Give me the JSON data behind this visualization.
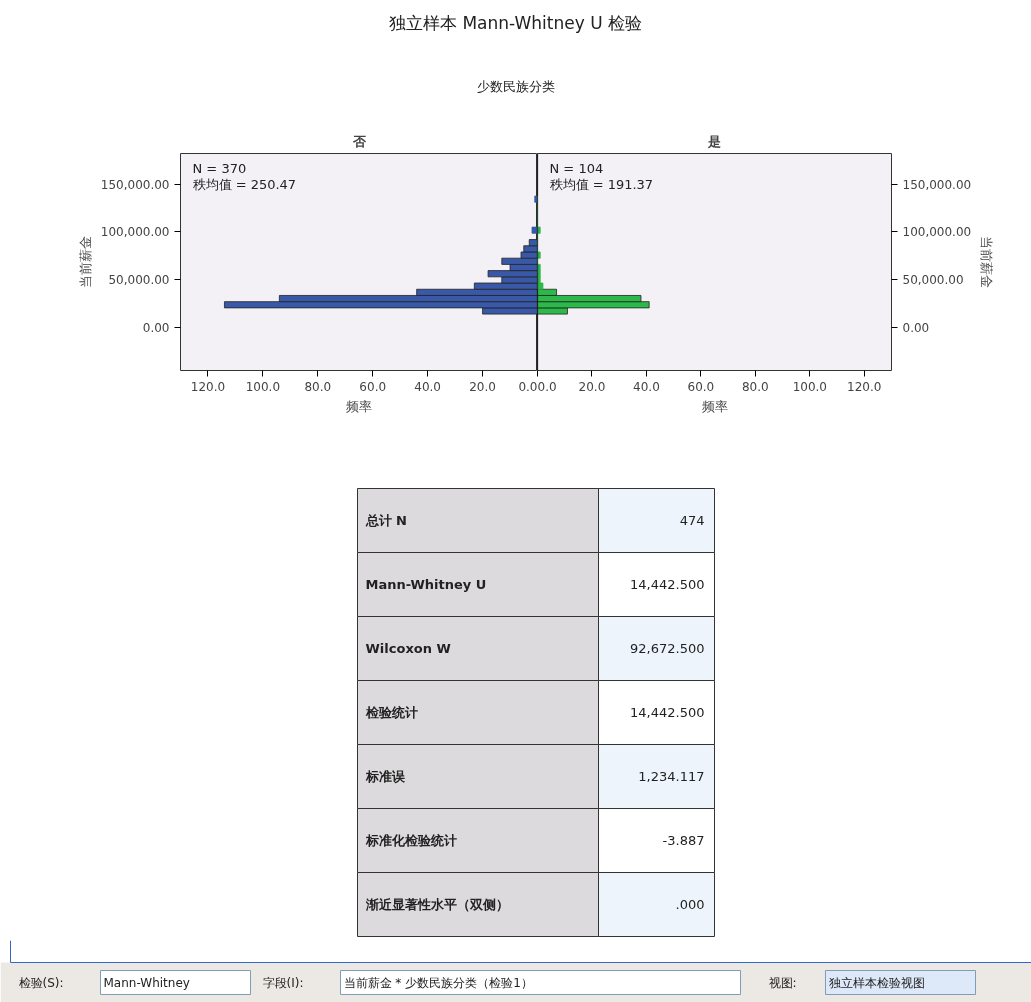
{
  "chart_data": [
    {
      "type": "other",
      "title": "独立样本 Mann-Whitney U 检验",
      "subtitle": "少数民族分类"
    },
    {
      "type": "histogram",
      "orientation": "horizontal",
      "title": "否",
      "xlabel": "频率",
      "ylabel": "当前薪金",
      "bins": [
        14000,
        20500,
        27000,
        33500,
        40000,
        46500,
        53000,
        59500,
        66000,
        72500,
        79000,
        85500,
        92000,
        98500,
        105000,
        111500,
        118000,
        124500,
        131000,
        137500
      ],
      "values": [
        20,
        114,
        94,
        44,
        23,
        13,
        18,
        10,
        13,
        6,
        5,
        3,
        0,
        2,
        0,
        0,
        0,
        0,
        1
      ],
      "color": "#3a58a8",
      "xlim": [
        130,
        0
      ],
      "xticks": [
        {
          "value": 120,
          "label": "120.0"
        },
        {
          "value": 100,
          "label": "100.0"
        },
        {
          "value": 80,
          "label": "80.0"
        },
        {
          "value": 60,
          "label": "60.0"
        },
        {
          "value": 40,
          "label": "40.0"
        },
        {
          "value": 20,
          "label": "20.0"
        },
        {
          "value": 0,
          "label": "0.0"
        }
      ],
      "ylim": [
        -45000,
        182000
      ],
      "yticks": [
        {
          "value": 0,
          "label": "0.00"
        },
        {
          "value": 50000,
          "label": "50,000.00"
        },
        {
          "value": 100000,
          "label": "100,000.00"
        },
        {
          "value": 150000,
          "label": "150,000.00"
        }
      ],
      "annotations": [
        "N = 370",
        "秩均值 = 250.47"
      ]
    },
    {
      "type": "histogram",
      "orientation": "horizontal",
      "title": "是",
      "xlabel": "频率",
      "ylabel": "当前薪金",
      "bins": [
        14000,
        20500,
        27000,
        33500,
        40000,
        46500,
        53000,
        59500,
        66000,
        72500,
        79000,
        85500,
        92000,
        98500,
        105000,
        111500,
        118000,
        124500,
        131000,
        137500
      ],
      "values": [
        11,
        41,
        38,
        7,
        2,
        1,
        1,
        1,
        0,
        1,
        0,
        0,
        0,
        1,
        0,
        0,
        0,
        0,
        0
      ],
      "color": "#2db84a",
      "xlim": [
        0,
        130
      ],
      "xticks": [
        {
          "value": 0,
          "label": "0.0"
        },
        {
          "value": 20,
          "label": "20.0"
        },
        {
          "value": 40,
          "label": "40.0"
        },
        {
          "value": 60,
          "label": "60.0"
        },
        {
          "value": 80,
          "label": "80.0"
        },
        {
          "value": 100,
          "label": "100.0"
        },
        {
          "value": 120,
          "label": "120.0"
        }
      ],
      "ylim": [
        -45000,
        182000
      ],
      "yticks": [
        {
          "value": 0,
          "label": "0.00"
        },
        {
          "value": 50000,
          "label": "50,000.00"
        },
        {
          "value": 100000,
          "label": "100,000.00"
        },
        {
          "value": 150000,
          "label": "150,000.00"
        }
      ],
      "annotations": [
        "N = 104",
        "秩均值 = 191.37"
      ]
    },
    {
      "type": "other",
      "annotations": [
        "总计 N",
        "474",
        "Mann-Whitney U",
        "14,442.500",
        "Wilcoxon W",
        "92,672.500",
        "检验统计",
        "14,442.500",
        "标准误",
        "1,234.117",
        "标准化检验统计",
        "-3.887",
        "渐近显著性水平（双侧）",
        ".000"
      ]
    },
    {
      "type": "other",
      "annotations": [
        "检验(S):",
        "Mann-Whitney",
        "字段(I):",
        "当前薪金 * 少数民族分类（检验1）",
        "视图:",
        "独立样本检验视图"
      ]
    }
  ]
}
